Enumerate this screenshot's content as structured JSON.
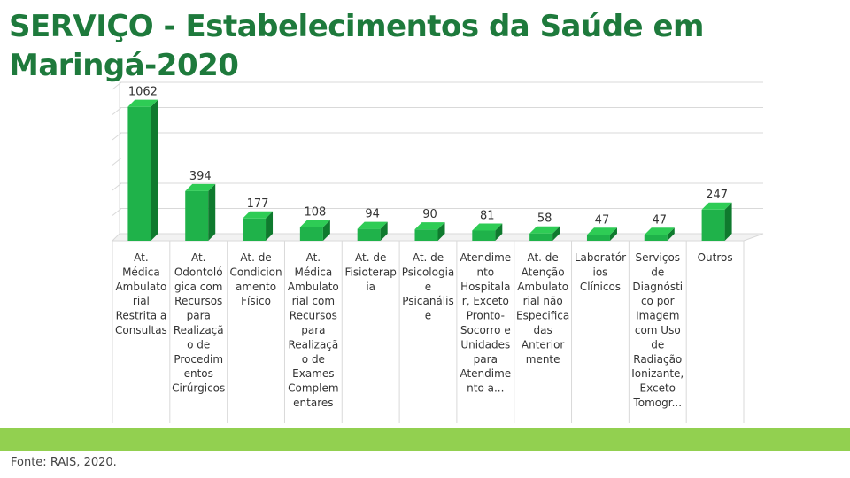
{
  "title": "SERVIÇO - Estabelecimentos da Saúde em Maringá-2020",
  "source": "Fonte: RAIS, 2020.",
  "colors": {
    "title": "#1e7a3c",
    "bar_front": "#1fb24a",
    "bar_side": "#0f7a2e",
    "bar_top": "#2ecc55",
    "band": "#92d050"
  },
  "chart_data": {
    "type": "bar",
    "categories": [
      [
        "At.",
        "Médica",
        "Ambulato",
        "rial",
        "Restrita a",
        "Consultas"
      ],
      [
        "At.",
        "Odontoló",
        "gica com",
        "Recursos",
        "para",
        "Realizaçã",
        "o de",
        "Procedim",
        "entos",
        "Cirúrgicos"
      ],
      [
        "At. de",
        "Condicion",
        "amento",
        "Físico"
      ],
      [
        "At.",
        "Médica",
        "Ambulato",
        "rial com",
        "Recursos",
        "para",
        "Realizaçã",
        "o de",
        "Exames",
        "Complem",
        "entares"
      ],
      [
        "At. de",
        "Fisioterap",
        "ia"
      ],
      [
        "At. de",
        "Psicologia",
        "e",
        "Psicanális",
        "e"
      ],
      [
        "Atendime",
        "nto",
        "Hospitala",
        "r, Exceto",
        "Pronto-",
        "Socorro e",
        "Unidades",
        "para",
        "Atendime",
        "nto a..."
      ],
      [
        "At. de",
        "Atenção",
        "Ambulato",
        "rial não",
        "Especifica",
        "das",
        "Anterior",
        "mente"
      ],
      [
        "Laboratór",
        "ios",
        "Clínicos"
      ],
      [
        "Serviços",
        "de",
        "Diagnósti",
        "co por",
        "Imagem",
        "com Uso",
        "de",
        "Radiação",
        "Ionizante,",
        "Exceto",
        "Tomogr..."
      ],
      [
        "Outros"
      ]
    ],
    "values": [
      1062,
      394,
      177,
      108,
      94,
      90,
      81,
      58,
      47,
      47,
      247
    ],
    "ylim": [
      0,
      1200
    ],
    "grid": true,
    "legend": "none",
    "data_labels": true
  }
}
